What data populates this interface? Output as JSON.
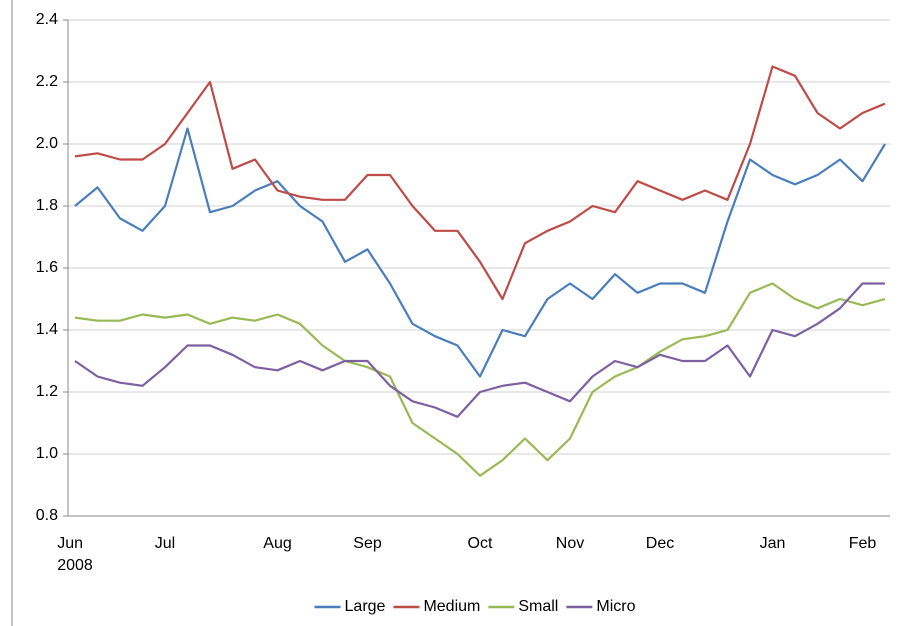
{
  "chart_data": {
    "type": "line",
    "categories": [
      "Jun\n2008",
      null,
      null,
      null,
      "Jul",
      null,
      null,
      null,
      null,
      "Aug",
      null,
      null,
      null,
      "Sep",
      null,
      null,
      null,
      null,
      "Oct",
      null,
      null,
      null,
      "Nov",
      null,
      null,
      null,
      "Dec",
      null,
      null,
      null,
      null,
      "Jan",
      null,
      null,
      null,
      "Feb",
      null
    ],
    "series": [
      {
        "name": "Large",
        "color": "#4a7ebb",
        "values": [
          1.8,
          1.86,
          1.76,
          1.72,
          1.8,
          2.05,
          1.78,
          1.8,
          1.85,
          1.88,
          1.8,
          1.75,
          1.62,
          1.66,
          1.55,
          1.42,
          1.38,
          1.35,
          1.25,
          1.4,
          1.38,
          1.5,
          1.55,
          1.5,
          1.58,
          1.52,
          1.55,
          1.55,
          1.52,
          1.75,
          1.95,
          1.9,
          1.87,
          1.9,
          1.95,
          1.88,
          2.0
        ]
      },
      {
        "name": "Medium",
        "color": "#be4b48",
        "values": [
          1.96,
          1.97,
          1.95,
          1.95,
          2.0,
          2.1,
          2.2,
          1.92,
          1.95,
          1.85,
          1.83,
          1.82,
          1.82,
          1.9,
          1.9,
          1.8,
          1.72,
          1.72,
          1.62,
          1.5,
          1.68,
          1.72,
          1.75,
          1.8,
          1.78,
          1.88,
          1.85,
          1.82,
          1.85,
          1.82,
          2.0,
          2.25,
          2.22,
          2.1,
          2.05,
          2.1,
          2.13
        ]
      },
      {
        "name": "Small",
        "color": "#98b954",
        "values": [
          1.44,
          1.43,
          1.43,
          1.45,
          1.44,
          1.45,
          1.42,
          1.44,
          1.43,
          1.45,
          1.42,
          1.35,
          1.3,
          1.28,
          1.25,
          1.1,
          1.05,
          1.0,
          0.93,
          0.98,
          1.05,
          0.98,
          1.05,
          1.2,
          1.25,
          1.28,
          1.33,
          1.37,
          1.38,
          1.4,
          1.52,
          1.55,
          1.5,
          1.47,
          1.5,
          1.48,
          1.5
        ]
      },
      {
        "name": "Micro",
        "color": "#7d60a0",
        "values": [
          1.3,
          1.25,
          1.23,
          1.22,
          1.28,
          1.35,
          1.35,
          1.32,
          1.28,
          1.27,
          1.3,
          1.27,
          1.3,
          1.3,
          1.22,
          1.17,
          1.15,
          1.12,
          1.2,
          1.22,
          1.23,
          1.2,
          1.17,
          1.25,
          1.3,
          1.28,
          1.32,
          1.3,
          1.3,
          1.35,
          1.25,
          1.4,
          1.38,
          1.42,
          1.47,
          1.55,
          1.55
        ]
      }
    ],
    "ylim": [
      0.8,
      2.4
    ],
    "yticks": [
      {
        "value": 0.8,
        "label": "0.8"
      },
      {
        "value": 1.0,
        "label": "1.0"
      },
      {
        "value": 1.2,
        "label": "1.2"
      },
      {
        "value": 1.4,
        "label": "1.4"
      },
      {
        "value": 1.6,
        "label": "1.6"
      },
      {
        "value": 1.8,
        "label": "1.8"
      },
      {
        "value": 2.0,
        "label": "2.0"
      },
      {
        "value": 2.2,
        "label": "2.2"
      },
      {
        "value": 2.4,
        "label": "2.4"
      }
    ],
    "grid": true,
    "legend": "bottom"
  }
}
